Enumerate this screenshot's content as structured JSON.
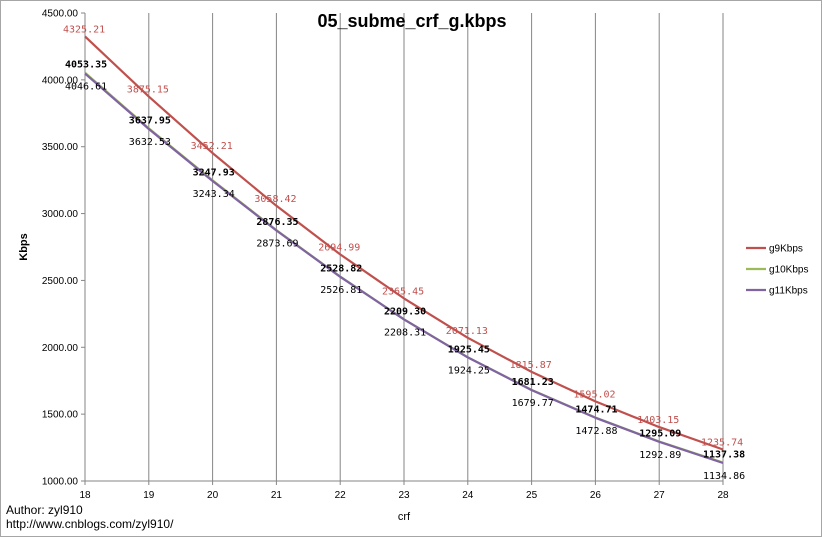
{
  "author_line": "Author: zyl910",
  "url_line": "http://www.cnblogs.com/zyl910/",
  "colors": {
    "g9": "#c0504d",
    "g10": "#9bbb59",
    "g11": "#8064a2"
  },
  "chart_data": {
    "type": "line",
    "title": "05_subme_crf_g.kbps",
    "xlabel": "crf",
    "ylabel": "Kbps",
    "x": [
      18,
      19,
      20,
      21,
      22,
      23,
      24,
      25,
      26,
      27,
      28
    ],
    "xlim": [
      18,
      28
    ],
    "ylim": [
      1000,
      4500
    ],
    "y_ticks": [
      "1000.00",
      "1500.00",
      "2000.00",
      "2500.00",
      "3000.00",
      "3500.00",
      "4000.00",
      "4500.00"
    ],
    "x_ticks": [
      "18",
      "19",
      "20",
      "21",
      "22",
      "23",
      "24",
      "25",
      "26",
      "27",
      "28"
    ],
    "grid": "vertical",
    "legend": "right",
    "series": [
      {
        "name": "g9Kbps",
        "values": [
          4325.21,
          3875.15,
          3452.21,
          3058.42,
          2694.99,
          2365.45,
          2071.13,
          1815.87,
          1595.02,
          1403.15,
          1235.74
        ],
        "labels": [
          "4325.21",
          "3875.15",
          "3452.21",
          "3058.42",
          "2694.99",
          "2365.45",
          "2071.13",
          "1815.87",
          "1595.02",
          "1403.15",
          "1235.74"
        ]
      },
      {
        "name": "g10Kbps",
        "values": [
          4053.35,
          3637.95,
          3247.93,
          2876.35,
          2528.82,
          2209.3,
          1925.45,
          1681.23,
          1474.71,
          1295.09,
          1137.38
        ],
        "labels": [
          "4053.35",
          "3637.95",
          "3247.93",
          "2876.35",
          "2528.82",
          "2209.30",
          "1925.45",
          "1681.23",
          "1474.71",
          "1295.09",
          "1137.38"
        ]
      },
      {
        "name": "g11Kbps",
        "values": [
          4046.61,
          3632.53,
          3243.34,
          2873.69,
          2526.81,
          2208.31,
          1924.25,
          1679.77,
          1472.88,
          1292.89,
          1134.86
        ],
        "labels": [
          "4046.61",
          "3632.53",
          "3243.34",
          "2873.69",
          "2526.81",
          "2208.31",
          "1924.25",
          "1679.77",
          "1472.88",
          "1292.89",
          "1134.86"
        ]
      }
    ]
  }
}
